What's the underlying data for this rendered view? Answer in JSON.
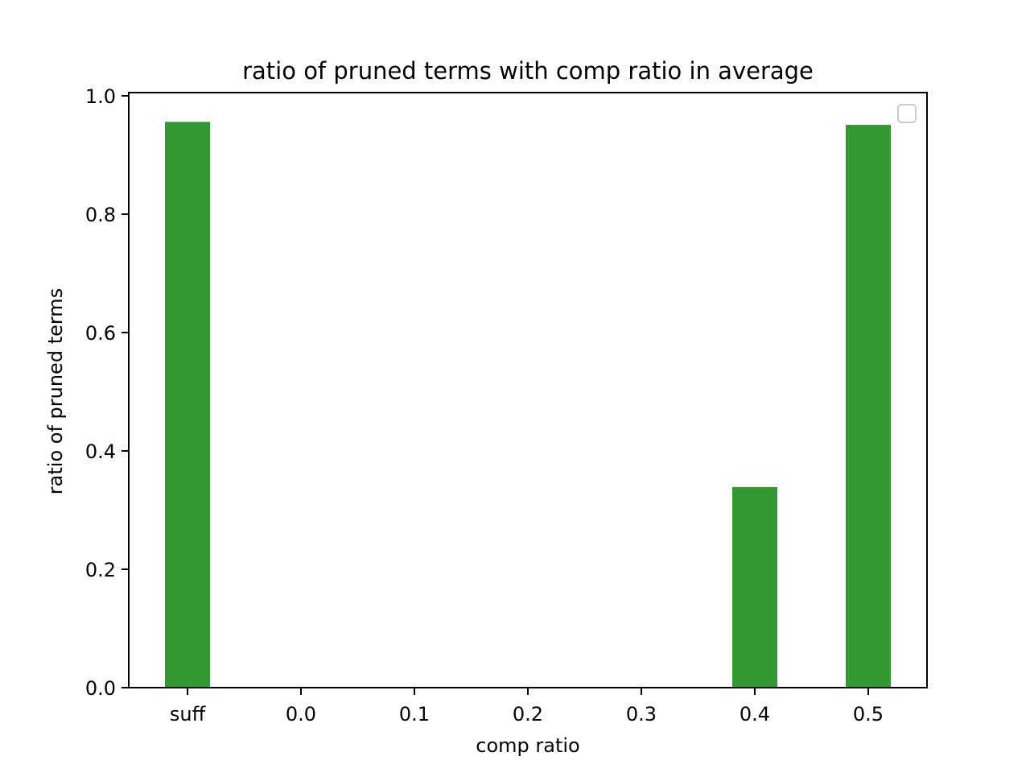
{
  "chart_data": {
    "type": "bar",
    "title": "ratio of pruned terms with comp ratio in average",
    "xlabel": "comp ratio",
    "ylabel": "ratio of pruned terms",
    "categories": [
      "suff",
      "0.0",
      "0.1",
      "0.2",
      "0.3",
      "0.4",
      "0.5"
    ],
    "values": [
      0.956,
      0.0,
      0.0,
      0.0,
      0.0,
      0.339,
      0.951
    ],
    "ylim": [
      0,
      1.0
    ],
    "yticks": [
      "0.0",
      "0.2",
      "0.4",
      "0.6",
      "0.8",
      "1.0"
    ],
    "bar_color": "#339933",
    "grid": false,
    "legend": {
      "placement": "top-right",
      "entries": []
    }
  }
}
